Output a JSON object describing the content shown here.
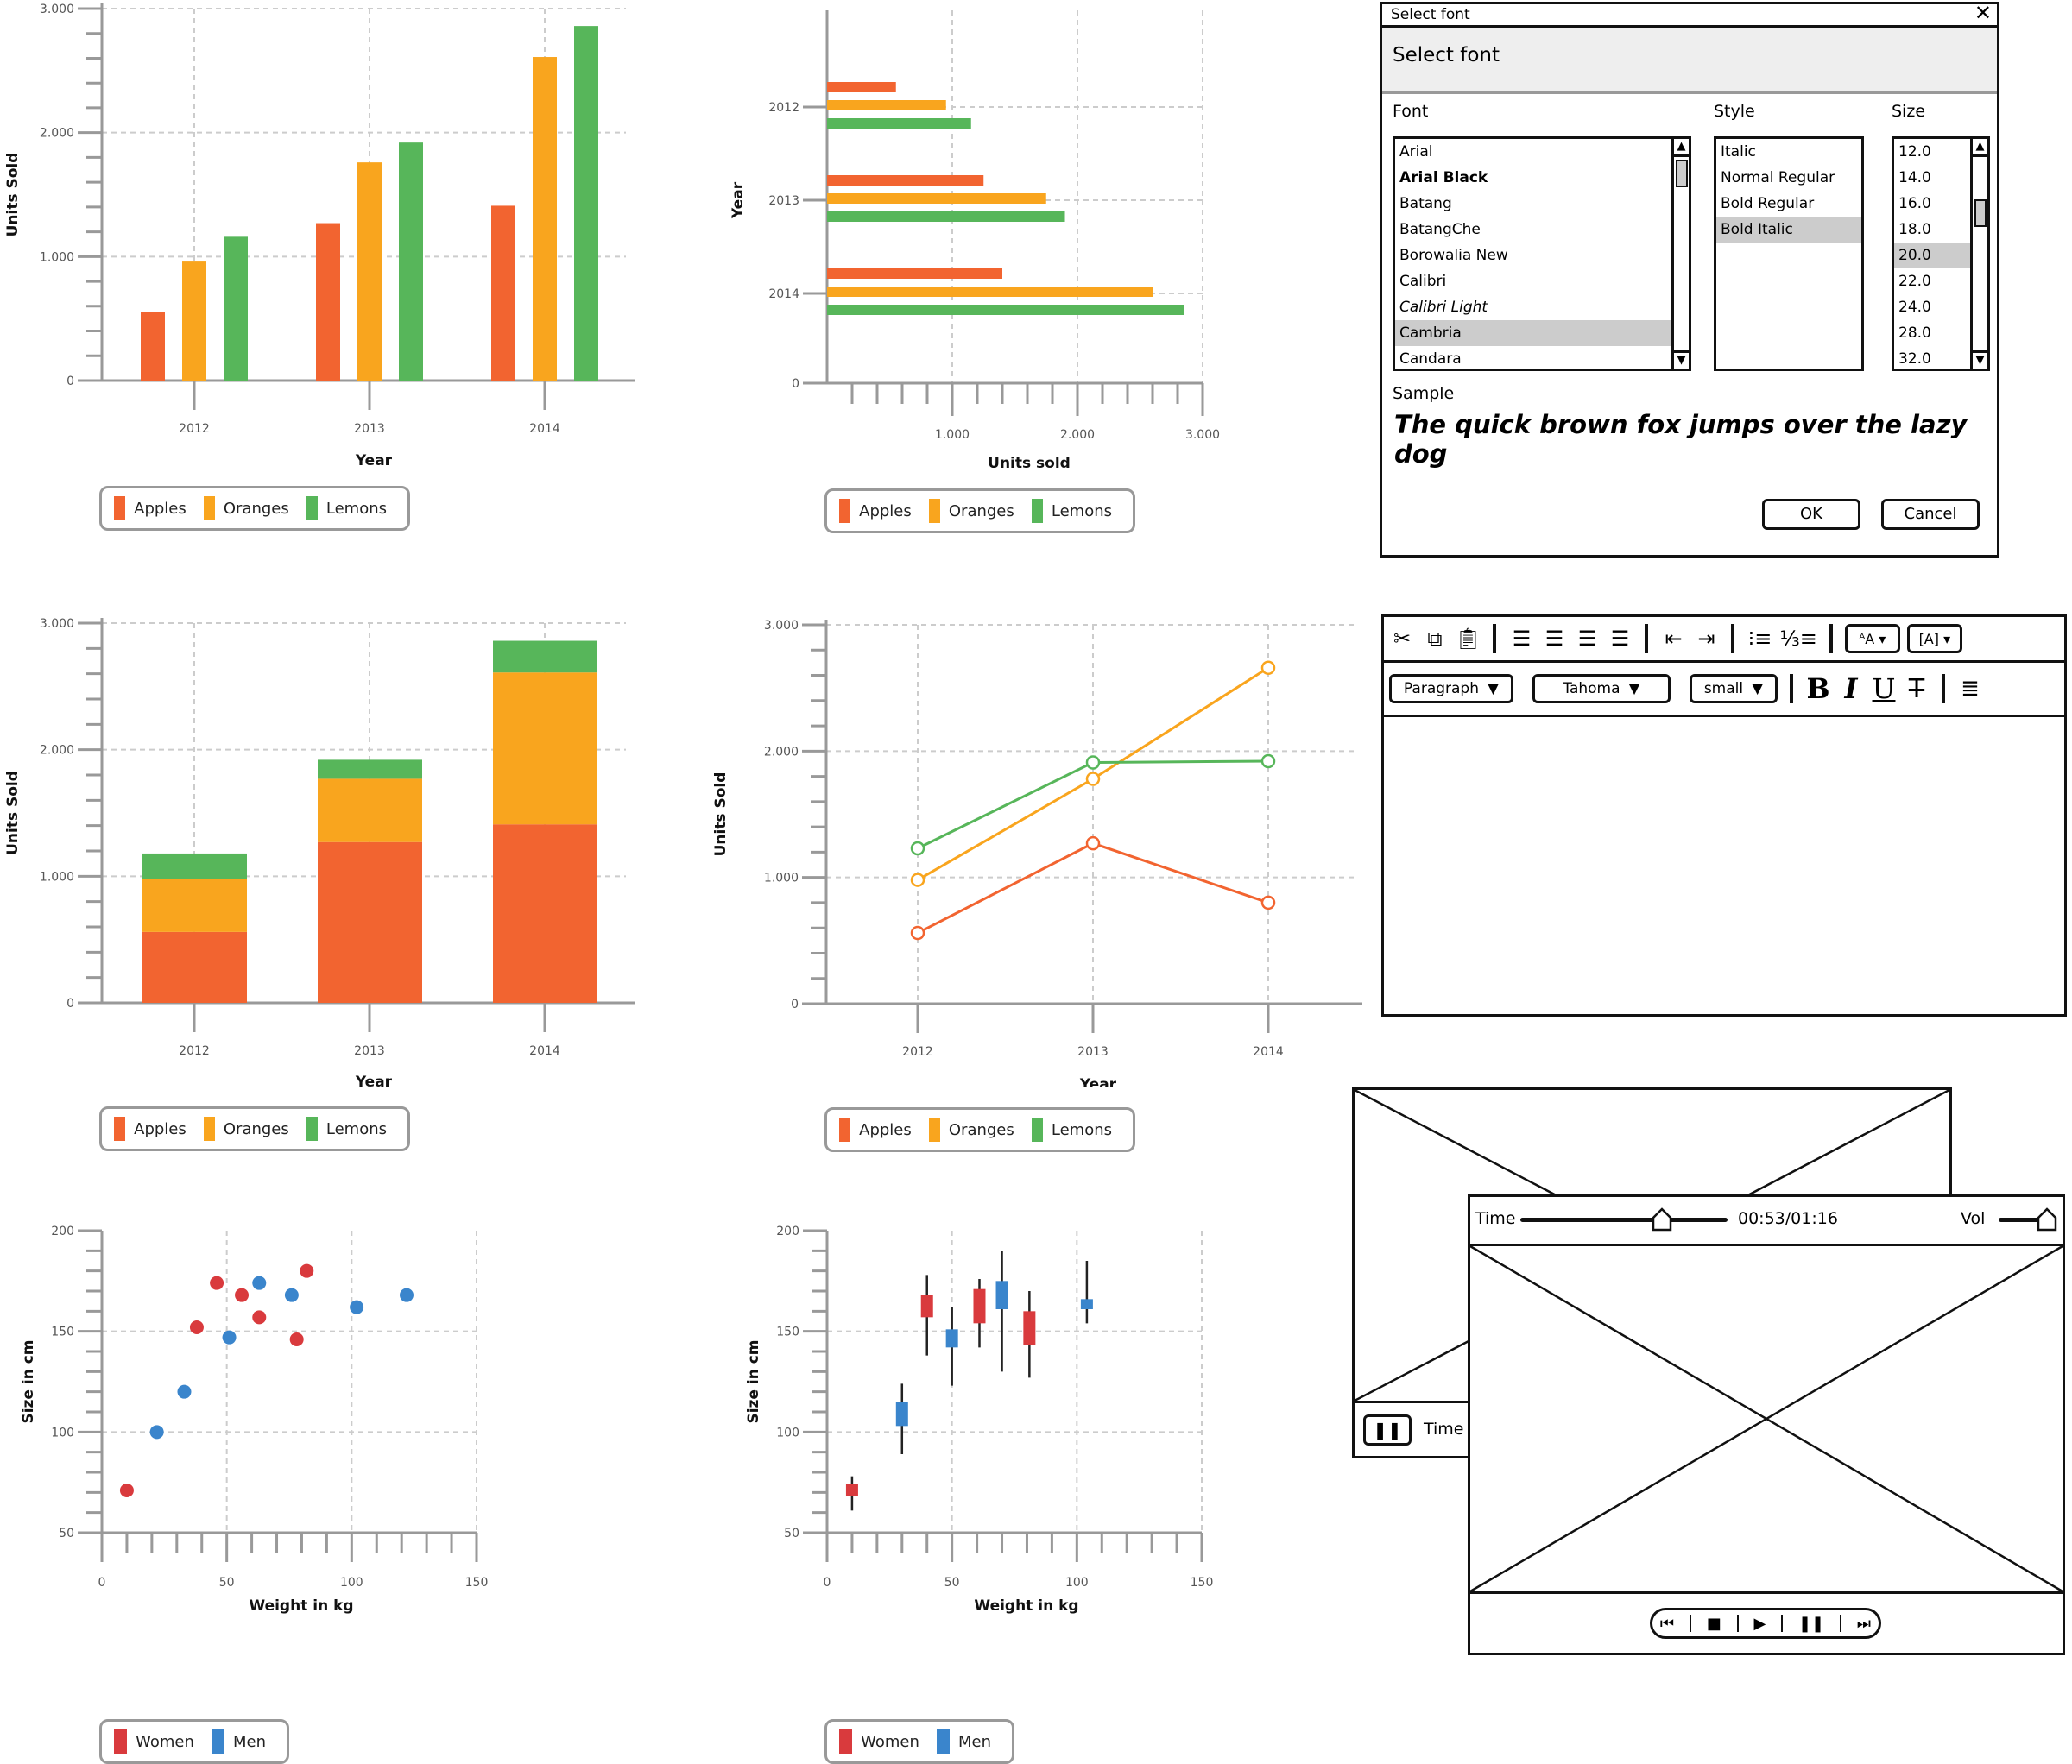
{
  "colors": {
    "apples": "#f26430",
    "oranges": "#f9a51e",
    "lemons": "#57b65a",
    "women": "#d93a3d",
    "men": "#3a85cc",
    "axis": "#999999",
    "grid": "#cccccc"
  },
  "chart_data": [
    {
      "id": "grouped-bar",
      "type": "bar",
      "title": "",
      "categories": [
        "2012",
        "2013",
        "2014"
      ],
      "series": [
        {
          "name": "Apples",
          "values": [
            550,
            1270,
            1410
          ]
        },
        {
          "name": "Oranges",
          "values": [
            960,
            1760,
            2610
          ]
        },
        {
          "name": "Lemons",
          "values": [
            1160,
            1920,
            2860
          ]
        }
      ],
      "xlabel": "Year",
      "ylabel": "Units Sold",
      "ylim": [
        0,
        3000
      ],
      "yticks": [
        "0",
        "1.000",
        "2.000",
        "3.000"
      ],
      "grid": true,
      "legend_position": "bottom"
    },
    {
      "id": "horizontal-bar",
      "type": "bar",
      "orientation": "horizontal",
      "categories": [
        "2012",
        "2013",
        "2014"
      ],
      "series": [
        {
          "name": "Apples",
          "values": [
            550,
            1250,
            1400
          ]
        },
        {
          "name": "Oranges",
          "values": [
            950,
            1750,
            2600
          ]
        },
        {
          "name": "Lemons",
          "values": [
            1150,
            1900,
            2850
          ]
        }
      ],
      "xlabel": "Units sold",
      "ylabel": "Year",
      "xlim": [
        0,
        3000
      ],
      "xticks": [
        "1.000",
        "2.000",
        "3.000"
      ],
      "yticks": [
        "2012",
        "2013",
        "2014",
        "0"
      ],
      "grid": true,
      "legend_position": "bottom"
    },
    {
      "id": "stacked-bar",
      "type": "bar",
      "stacked": true,
      "categories": [
        "2012",
        "2013",
        "2014"
      ],
      "series": [
        {
          "name": "Apples",
          "values": [
            560,
            1270,
            1410
          ]
        },
        {
          "name": "Oranges",
          "values": [
            420,
            500,
            1200
          ]
        },
        {
          "name": "Lemons",
          "values": [
            200,
            150,
            250
          ]
        }
      ],
      "xlabel": "Year",
      "ylabel": "Units Sold",
      "ylim": [
        0,
        3000
      ],
      "yticks": [
        "0",
        "1.000",
        "2.000",
        "3.000"
      ],
      "grid": true,
      "legend_position": "bottom"
    },
    {
      "id": "line",
      "type": "line",
      "categories": [
        "2012",
        "2013",
        "2014"
      ],
      "series": [
        {
          "name": "Apples",
          "values": [
            560,
            1270,
            800
          ]
        },
        {
          "name": "Oranges",
          "values": [
            980,
            1780,
            2660
          ]
        },
        {
          "name": "Lemons",
          "values": [
            1230,
            1910,
            1920
          ]
        }
      ],
      "xlabel": "Year",
      "ylabel": "Units Sold",
      "ylim": [
        0,
        3000
      ],
      "yticks": [
        "0",
        "1.000",
        "2.000",
        "3.000"
      ],
      "grid": true,
      "legend_position": "bottom"
    },
    {
      "id": "scatter",
      "type": "scatter",
      "series": [
        {
          "name": "Women",
          "points": [
            [
              10,
              71
            ],
            [
              38,
              152
            ],
            [
              46,
              174
            ],
            [
              56,
              168
            ],
            [
              63,
              157
            ],
            [
              78,
              146
            ],
            [
              82,
              180
            ]
          ]
        },
        {
          "name": "Men",
          "points": [
            [
              22,
              100
            ],
            [
              33,
              120
            ],
            [
              51,
              147
            ],
            [
              63,
              174
            ],
            [
              76,
              168
            ],
            [
              102,
              162
            ],
            [
              122,
              168
            ]
          ]
        }
      ],
      "xlabel": "Weight in kg",
      "ylabel": "Size in cm",
      "xlim": [
        0,
        150
      ],
      "ylim": [
        50,
        200
      ],
      "xticks": [
        "0",
        "50",
        "100",
        "150"
      ],
      "yticks": [
        "50",
        "100",
        "150",
        "200"
      ],
      "grid": true,
      "legend_position": "bottom"
    },
    {
      "id": "candlestick",
      "type": "scatter",
      "variant": "box-range",
      "series": [
        {
          "name": "Women",
          "boxes": [
            {
              "x": 10,
              "low": 61,
              "q1": 68,
              "q3": 74,
              "high": 78
            },
            {
              "x": 40,
              "low": 138,
              "q1": 157,
              "q3": 168,
              "high": 178
            },
            {
              "x": 61,
              "low": 142,
              "q1": 154,
              "q3": 171,
              "high": 176
            },
            {
              "x": 81,
              "low": 127,
              "q1": 143,
              "q3": 160,
              "high": 170
            }
          ]
        },
        {
          "name": "Men",
          "boxes": [
            {
              "x": 30,
              "low": 89,
              "q1": 103,
              "q3": 115,
              "high": 124
            },
            {
              "x": 50,
              "low": 123,
              "q1": 142,
              "q3": 151,
              "high": 162
            },
            {
              "x": 70,
              "low": 130,
              "q1": 161,
              "q3": 175,
              "high": 190
            },
            {
              "x": 104,
              "low": 154,
              "q1": 161,
              "q3": 166,
              "high": 185
            }
          ]
        }
      ],
      "xlabel": "Weight in kg",
      "ylabel": "Size in cm",
      "xlim": [
        0,
        150
      ],
      "ylim": [
        50,
        200
      ],
      "xticks": [
        "0",
        "50",
        "100",
        "150"
      ],
      "yticks": [
        "50",
        "100",
        "150",
        "200"
      ],
      "grid": true,
      "legend_position": "bottom"
    }
  ],
  "legends": {
    "fruit": [
      "Apples",
      "Oranges",
      "Lemons"
    ],
    "people": [
      "Women",
      "Men"
    ]
  },
  "font_dialog": {
    "window_title": "Select font",
    "header": "Select font",
    "close_icon": "close-icon",
    "font_label": "Font",
    "style_label": "Style",
    "size_label": "Size",
    "fonts": [
      "Arial",
      "Arial Black",
      "Batang",
      "BatangChe",
      "Borowalia New",
      "Calibri",
      "Calibri Light",
      "Cambria",
      "Candara"
    ],
    "selected_font": "Cambria",
    "styles": [
      "Italic",
      "Normal Regular",
      "Bold Regular",
      "Bold Italic"
    ],
    "selected_style": "Bold Italic",
    "sizes": [
      "12.0",
      "14.0",
      "16.0",
      "18.0",
      "20.0",
      "22.0",
      "24.0",
      "28.0",
      "32.0"
    ],
    "selected_size": "20.0",
    "sample_label": "Sample",
    "sample_text": "The quick brown fox jumps over the lazy dog",
    "ok_label": "OK",
    "cancel_label": "Cancel"
  },
  "editor": {
    "toolbar1_icons": [
      "scissors-icon",
      "copy-icon",
      "paste-icon",
      "align-left-icon",
      "align-center-icon",
      "align-right-icon",
      "align-justify-icon",
      "outdent-icon",
      "indent-icon",
      "bullet-list-icon",
      "numbered-list-icon",
      "text-color-icon",
      "highlight-color-icon"
    ],
    "paragraph_value": "Paragraph",
    "font_value": "Tahoma",
    "size_value": "small",
    "format_icons": [
      "bold-icon",
      "italic-icon",
      "underline-icon",
      "strikethrough-icon",
      "line-spacing-icon"
    ],
    "bold_glyph": "B",
    "italic_glyph": "I",
    "underline_glyph": "U",
    "strike_glyph": "T"
  },
  "video_back": {
    "time_label": "Time",
    "pause_icon": "pause-icon"
  },
  "video_front": {
    "time_label": "Time",
    "time_value": "00:53/01:16",
    "vol_label": "Vol",
    "time_progress_pct": 70,
    "volume_pct": 100,
    "controls": [
      "skip-back-icon",
      "stop-icon",
      "play-icon",
      "pause-icon",
      "skip-forward-icon"
    ]
  }
}
